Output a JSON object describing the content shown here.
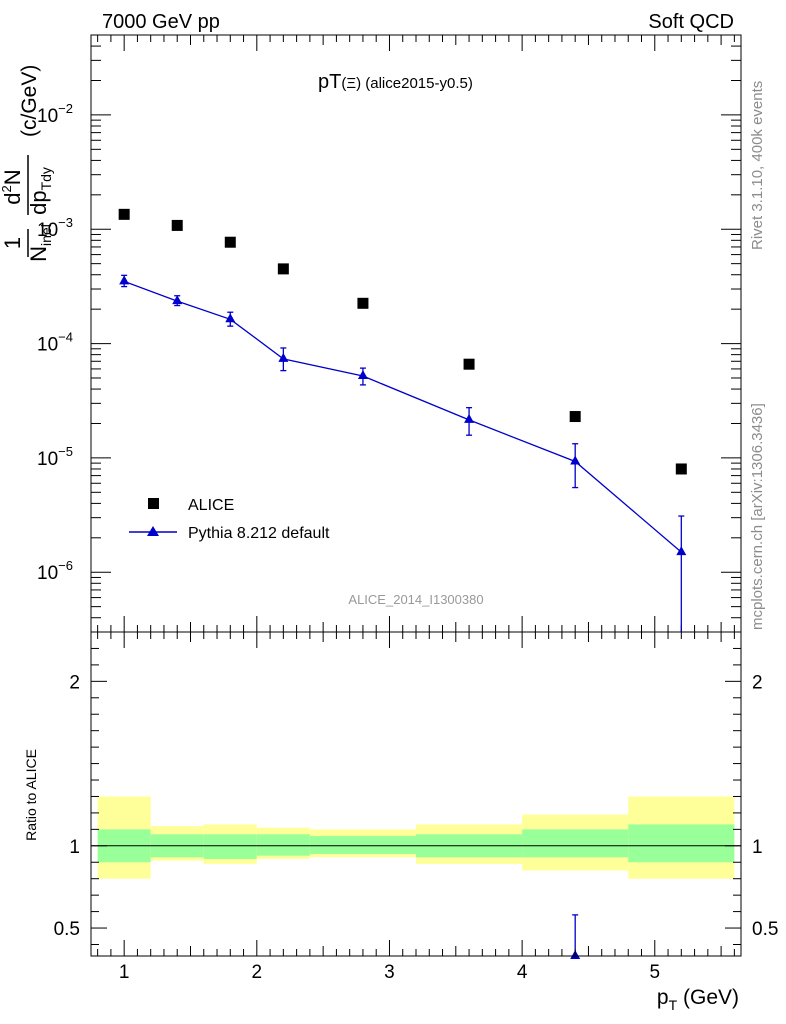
{
  "header": {
    "left": "7000 GeV pp",
    "right": "Soft QCD"
  },
  "side_labels": {
    "rivet": "Rivet 3.1.10,  400k events",
    "mcplots": "mcplots.cern.ch [arXiv:1306.3436]"
  },
  "colors": {
    "data": "#000000",
    "mc": "#0000cc",
    "band_inner": "#99ff99",
    "band_outer": "#ffff99",
    "watermark": "#999999"
  },
  "chart_data": [
    {
      "type": "scatter",
      "title_main": "pT",
      "title_sym": "(Ξ)",
      "title_rest": " (alice2015-y0.5)",
      "watermark": "ALICE_2014_I1300380",
      "ylabel_num": "1",
      "ylabel_den": "N",
      "ylabel_den_sub": "inel",
      "ylabel_frac2_num": "d",
      "ylabel_frac2_num_sup": "2",
      "ylabel_frac2_num_rest": "N",
      "ylabel_frac2_den": "dp",
      "ylabel_frac2_den_sub": "Tdy",
      "ylabel_unit": "(c/GeV)",
      "yscale": "log",
      "xlim": [
        0.75,
        5.65
      ],
      "ylim": [
        3e-07,
        0.05
      ],
      "yticks": [
        {
          "value": 0.01,
          "base": "10",
          "exp": "−2"
        },
        {
          "value": 0.001,
          "base": "10",
          "exp": "−3"
        },
        {
          "value": 0.0001,
          "base": "10",
          "exp": "−4"
        },
        {
          "value": 1e-05,
          "base": "10",
          "exp": "−5"
        },
        {
          "value": 1e-06,
          "base": "10",
          "exp": "−6"
        }
      ],
      "legend": [
        {
          "label": "ALICE",
          "marker": "square"
        },
        {
          "label": "Pythia 8.212 default",
          "marker": "triangle"
        }
      ],
      "series": [
        {
          "name": "ALICE",
          "x": [
            1.0,
            1.4,
            1.8,
            2.2,
            2.8,
            3.6,
            4.4,
            5.2
          ],
          "y": [
            0.00135,
            0.00108,
            0.00077,
            0.00045,
            0.000225,
            6.6e-05,
            2.3e-05,
            8e-06
          ]
        },
        {
          "name": "Pythia 8.212 default",
          "x": [
            1.0,
            1.4,
            1.8,
            2.2,
            2.8,
            3.6,
            4.4,
            5.2
          ],
          "y": [
            0.00035,
            0.000235,
            0.000163,
            7.35e-05,
            5.2e-05,
            2.15e-05,
            9.3e-06,
            1.5e-06
          ],
          "ylo": [
            0.000315,
            0.000215,
            0.000142,
            5.8e-05,
            4.35e-05,
            1.58e-05,
            5.5e-06,
            1e-07
          ],
          "yhi": [
            0.000395,
            0.000262,
            0.000188,
            9.15e-05,
            6.1e-05,
            2.75e-05,
            1.33e-05,
            3.1e-06
          ]
        }
      ]
    },
    {
      "type": "scatter",
      "ylabel": "Ratio to ALICE",
      "xlabel_main": "p",
      "xlabel_sub": "T",
      "xlabel_unit": " (GeV)",
      "xlim": [
        0.75,
        5.65
      ],
      "ylim": [
        0.33,
        2.3
      ],
      "xticks": [
        "1",
        "2",
        "3",
        "4",
        "5"
      ],
      "xtick_values": [
        1,
        2,
        3,
        4,
        5
      ],
      "yticks": [
        "0.5",
        "1",
        "2"
      ],
      "ytick_values": [
        0.5,
        1,
        2
      ],
      "bins": [
        {
          "lo": 0.8,
          "hi": 1.2,
          "inner": [
            0.9,
            1.1
          ],
          "outer": [
            0.8,
            1.3
          ]
        },
        {
          "lo": 1.2,
          "hi": 1.6,
          "inner": [
            0.93,
            1.07
          ],
          "outer": [
            0.91,
            1.12
          ]
        },
        {
          "lo": 1.6,
          "hi": 2.0,
          "inner": [
            0.92,
            1.07
          ],
          "outer": [
            0.89,
            1.13
          ]
        },
        {
          "lo": 2.0,
          "hi": 2.4,
          "inner": [
            0.94,
            1.07
          ],
          "outer": [
            0.92,
            1.11
          ]
        },
        {
          "lo": 2.4,
          "hi": 3.2,
          "inner": [
            0.95,
            1.06
          ],
          "outer": [
            0.93,
            1.1
          ]
        },
        {
          "lo": 3.2,
          "hi": 4.0,
          "inner": [
            0.93,
            1.07
          ],
          "outer": [
            0.89,
            1.13
          ]
        },
        {
          "lo": 4.0,
          "hi": 4.8,
          "inner": [
            0.93,
            1.1
          ],
          "outer": [
            0.85,
            1.19
          ]
        },
        {
          "lo": 4.8,
          "hi": 5.6,
          "inner": [
            0.9,
            1.13
          ],
          "outer": [
            0.8,
            1.3
          ]
        }
      ],
      "mc_points": [
        {
          "x": 4.4,
          "y": 0.33,
          "yhi": 0.58
        }
      ],
      "reference_line": 1.0
    }
  ]
}
